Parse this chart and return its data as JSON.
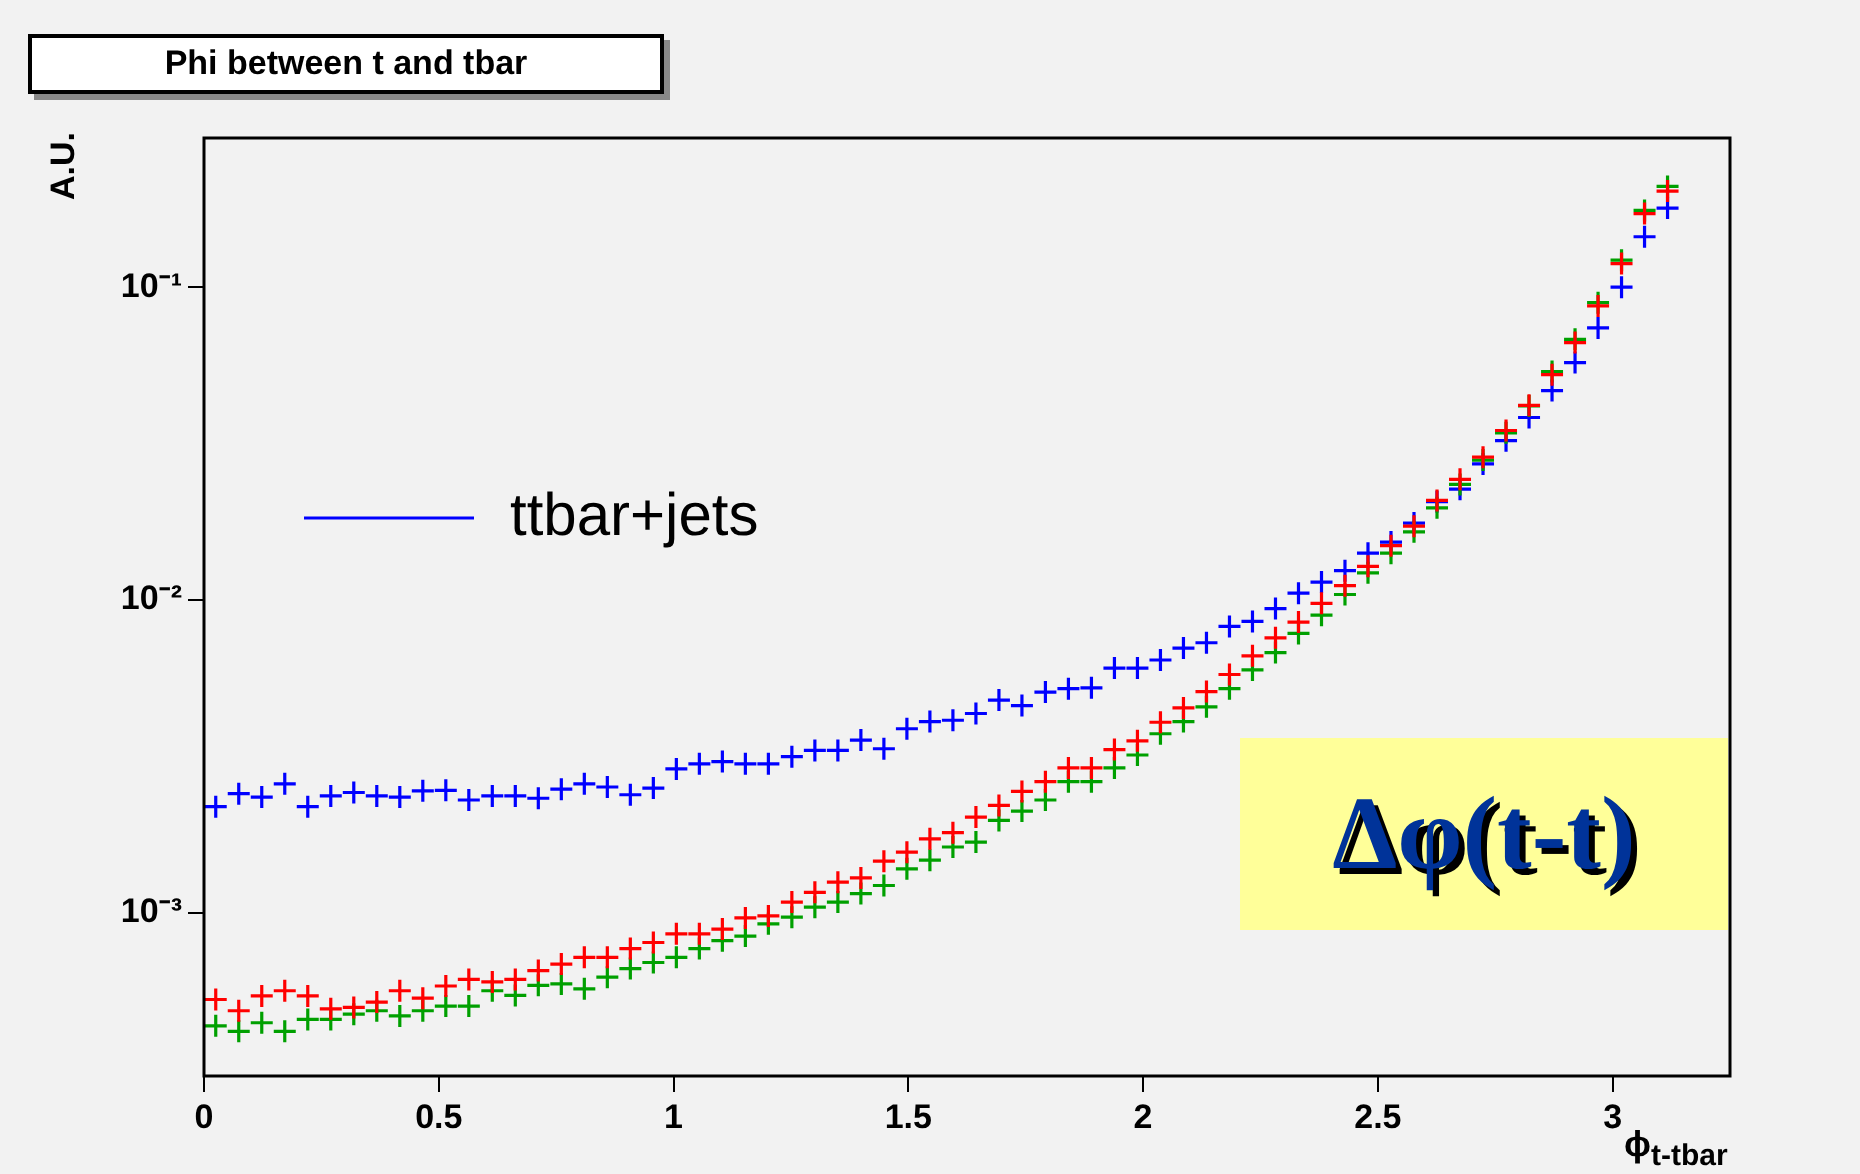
{
  "chart_data": {
    "type": "scatter",
    "title": "Phi between t and tbar",
    "xlabel": "ϕ$_{t-tbar}$",
    "ylabel": "A.U.",
    "annotations": [
      "Δφ(t-t)"
    ],
    "x": [
      0.025,
      0.074,
      0.123,
      0.172,
      0.221,
      0.27,
      0.319,
      0.368,
      0.417,
      0.466,
      0.515,
      0.564,
      0.614,
      0.663,
      0.712,
      0.761,
      0.81,
      0.859,
      0.908,
      0.957,
      1.006,
      1.055,
      1.104,
      1.153,
      1.202,
      1.252,
      1.301,
      1.35,
      1.399,
      1.448,
      1.497,
      1.546,
      1.595,
      1.644,
      1.693,
      1.742,
      1.792,
      1.841,
      1.89,
      1.939,
      1.988,
      2.037,
      2.086,
      2.135,
      2.184,
      2.233,
      2.282,
      2.331,
      2.38,
      2.43,
      2.479,
      2.528,
      2.577,
      2.626,
      2.675,
      2.724,
      2.773,
      2.822,
      2.871,
      2.92,
      2.969,
      3.019,
      3.068,
      3.117
    ],
    "series": [
      {
        "color": "#ff0000",
        "values": [
          0.000527,
          0.000485,
          0.000541,
          0.000562,
          0.000541,
          0.000492,
          0.000497,
          0.000517,
          0.000562,
          0.000532,
          0.000582,
          0.000611,
          0.0006,
          0.000611,
          0.000652,
          0.000684,
          0.000719,
          0.000719,
          0.000767,
          0.000802,
          0.000855,
          0.000855,
          0.000885,
          0.000961,
          0.000975,
          0.00108,
          0.00116,
          0.00125,
          0.00129,
          0.00146,
          0.00156,
          0.00172,
          0.0018,
          0.00202,
          0.0022,
          0.00244,
          0.00262,
          0.0029,
          0.0029,
          0.00332,
          0.00354,
          0.00406,
          0.00451,
          0.00509,
          0.00577,
          0.00662,
          0.00756,
          0.00849,
          0.00975,
          0.0111,
          0.0128,
          0.0149,
          0.0172,
          0.0208,
          0.0243,
          0.0286,
          0.0348,
          0.0419,
          0.0525,
          0.0665,
          0.0871,
          0.119,
          0.172,
          0.203
        ]
      },
      {
        "color": "#00a000",
        "values": [
          0.000434,
          0.000417,
          0.000444,
          0.000417,
          0.000455,
          0.000455,
          0.000473,
          0.000485,
          0.000467,
          0.000485,
          0.000502,
          0.000502,
          0.000562,
          0.000543,
          0.000585,
          0.000591,
          0.00057,
          0.000621,
          0.000662,
          0.000692,
          0.000719,
          0.000767,
          0.000813,
          0.000841,
          0.00092,
          0.000966,
          0.00104,
          0.00108,
          0.00115,
          0.00122,
          0.00138,
          0.00147,
          0.00162,
          0.00168,
          0.00197,
          0.00211,
          0.00229,
          0.00262,
          0.00262,
          0.0029,
          0.00319,
          0.00373,
          0.00408,
          0.00455,
          0.0052,
          0.00597,
          0.00678,
          0.00781,
          0.00893,
          0.0104,
          0.0122,
          0.0141,
          0.0165,
          0.0197,
          0.0234,
          0.028,
          0.0342,
          0.0417,
          0.0537,
          0.0681,
          0.0892,
          0.122,
          0.176,
          0.21
        ]
      },
      {
        "name": "ttbar+jets",
        "color": "#0000ff",
        "values": [
          0.00218,
          0.0024,
          0.00234,
          0.00258,
          0.00218,
          0.00236,
          0.00242,
          0.00236,
          0.00234,
          0.00245,
          0.00246,
          0.00229,
          0.00236,
          0.00236,
          0.00232,
          0.00248,
          0.00258,
          0.00252,
          0.00238,
          0.0025,
          0.00288,
          0.00299,
          0.00304,
          0.00299,
          0.00299,
          0.00315,
          0.0033,
          0.0033,
          0.00356,
          0.00334,
          0.00387,
          0.00408,
          0.00412,
          0.00433,
          0.00478,
          0.00459,
          0.00507,
          0.0052,
          0.00523,
          0.00605,
          0.00605,
          0.00642,
          0.00701,
          0.00729,
          0.00822,
          0.00853,
          0.00938,
          0.0105,
          0.0114,
          0.0124,
          0.0141,
          0.0153,
          0.0176,
          0.0206,
          0.0226,
          0.0272,
          0.0323,
          0.0383,
          0.0467,
          0.0574,
          0.0741,
          0.1,
          0.145,
          0.179
        ]
      }
    ],
    "xlim": [
      0,
      3.25
    ],
    "xticks": [
      0,
      0.5,
      1,
      1.5,
      2,
      2.5,
      3
    ],
    "ylim": [
      0.0003,
      0.3
    ],
    "yticks": [
      {
        "value": 0.001,
        "label": "10⁻³"
      },
      {
        "value": 0.01,
        "label": "10⁻²"
      },
      {
        "value": 0.1,
        "label": "10⁻¹"
      }
    ],
    "log": "y",
    "grid": false,
    "legend": "top left",
    "marker": "cross"
  }
}
